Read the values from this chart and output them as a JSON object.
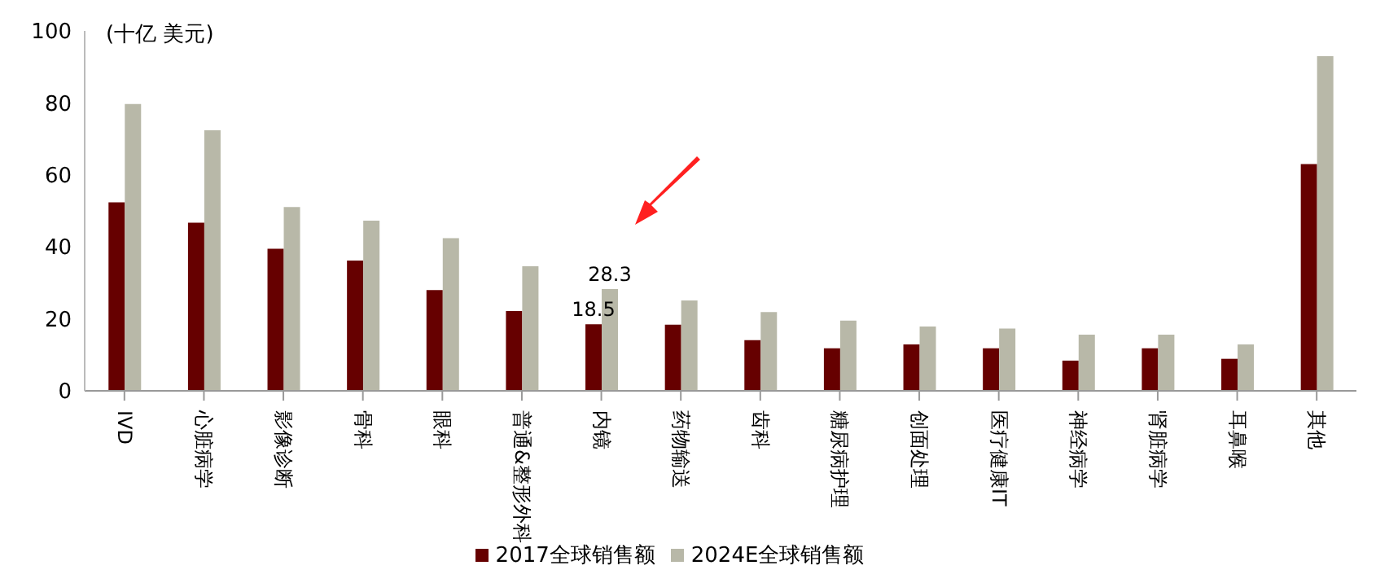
{
  "chart_data": {
    "type": "bar",
    "ylabel": "(十亿 美元)",
    "categories": [
      "IVD",
      "心脏病学",
      "影像诊断",
      "骨科",
      "眼科",
      "普通&整形外科",
      "内镜",
      "药物输送",
      "齿科",
      "糖尿病护理",
      "创面处理",
      "医疗健康IT",
      "神经病学",
      "肾脏病学",
      "耳鼻喉",
      "其他"
    ],
    "series": [
      {
        "name": "2017全球销售额",
        "color": "#660000",
        "values": [
          52.4,
          46.7,
          39.5,
          36.2,
          28,
          22.2,
          18.5,
          18.4,
          14.1,
          11.8,
          12.9,
          11.8,
          8.4,
          11.8,
          8.9,
          63
        ],
        "value_labels": [
          null,
          null,
          null,
          null,
          null,
          null,
          "18.5",
          null,
          null,
          null,
          null,
          null,
          null,
          null,
          null,
          null
        ]
      },
      {
        "name": "2024E全球销售额",
        "color": "#b8b8a8",
        "values": [
          79.7,
          72.4,
          51.1,
          47.3,
          42.4,
          34.6,
          28.3,
          25.1,
          21.9,
          19.5,
          17.9,
          17.3,
          15.6,
          15.6,
          12.9,
          93
        ],
        "value_labels": [
          null,
          null,
          null,
          null,
          null,
          null,
          "28.3",
          null,
          null,
          null,
          null,
          null,
          null,
          null,
          null,
          null
        ]
      }
    ],
    "ylim": [
      0,
      100
    ],
    "yticks": [
      0,
      20,
      40,
      60,
      80,
      100
    ],
    "grid": false,
    "legend": "bottom"
  }
}
